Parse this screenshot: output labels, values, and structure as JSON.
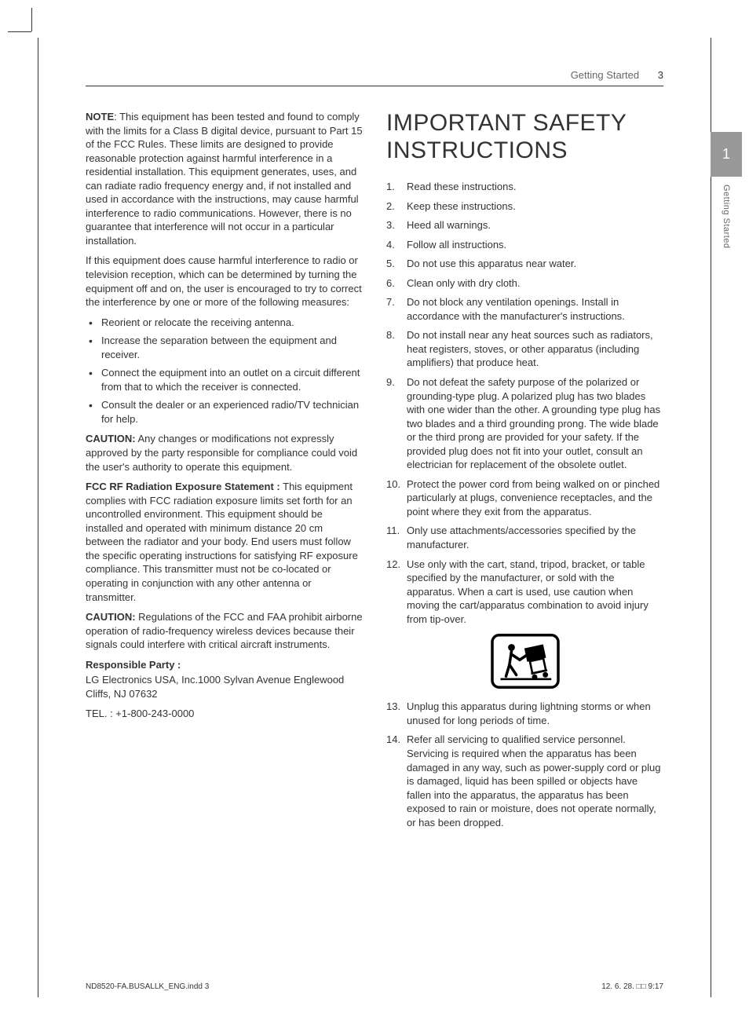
{
  "header": {
    "section": "Getting Started",
    "page_number": "3"
  },
  "side_tab": {
    "number": "1",
    "label": "Getting Started"
  },
  "left_column": {
    "note_label": "NOTE",
    "note_text": ": This equipment has been tested and found to comply with the limits for a Class B digital device, pursuant to Part 15 of the FCC Rules. These limits are designed to provide reasonable protection against harmful interference in a residential installation. This equipment generates, uses, and can radiate radio frequency energy and, if not installed and used in accordance with the instructions, may cause harmful interference to radio communications. However, there is no guarantee that interference will not occur in a particular installation.",
    "para2": "If this equipment does cause harmful interference to radio or television reception, which can be determined by turning the equipment off and on, the user is encouraged to try to correct the interference by one or more of the following measures:",
    "bullets": [
      "Reorient or relocate the receiving antenna.",
      "Increase the separation between the equipment and receiver.",
      "Connect the equipment into an outlet on a circuit different from that to which the receiver is connected.",
      "Consult the dealer or an experienced radio/TV technician for help."
    ],
    "caution1_label": "CAUTION:",
    "caution1_text": " Any changes or modifications not expressly approved by the party responsible for compliance could void the user's authority to operate this equipment.",
    "fcc_label": "FCC RF Radiation Exposure Statement :",
    "fcc_text": " This equipment complies with FCC radiation exposure limits set forth for an uncontrolled environment. This equipment should be installed and operated with  minimum distance 20 cm between the radiator and your body. End users must follow the specific operating instructions for satisfying RF exposure compliance. This transmitter must not be co-located or operating in conjunction with any other antenna or transmitter.",
    "caution2_label": "CAUTION:",
    "caution2_text": " Regulations of the FCC and FAA prohibit airborne operation of radio-frequency wireless devices because their signals could interfere with critical aircraft instruments.",
    "responsible_label": "Responsible Party :",
    "responsible_line1": "LG Electronics USA, Inc.1000 Sylvan Avenue Englewood Cliffs, NJ 07632",
    "responsible_tel": "TEL. : +1-800-243-0000"
  },
  "right_column": {
    "title": "IMPORTANT SAFETY INSTRUCTIONS",
    "items": [
      "Read these instructions.",
      "Keep these instructions.",
      "Heed all warnings.",
      "Follow all instructions.",
      "Do not use this apparatus near water.",
      "Clean only with dry cloth.",
      "Do not block any ventilation openings. Install in accordance with the manufacturer's instructions.",
      "Do not install near any heat sources such as radiators, heat registers, stoves, or other apparatus (including amplifiers) that produce heat.",
      "Do not defeat the safety purpose of the polarized or grounding-type plug. A polarized plug has two blades with one wider than the other. A grounding type plug has two blades and a third grounding prong. The wide blade or the third prong are provided for your safety. If the provided plug does not fit into your outlet, consult an electrician for replacement of the obsolete outlet.",
      "Protect the power cord from being walked on or pinched particularly at plugs, convenience receptacles, and the point where they exit from the apparatus.",
      "Only use attachments/accessories specified by the manufacturer.",
      "Use only with the cart, stand, tripod, bracket, or table specified by the manufacturer, or sold with the apparatus. When a cart is used, use caution when moving the cart/apparatus combination to avoid injury from tip-over.",
      "Unplug this apparatus during lightning storms or when unused for long periods of time.",
      "Refer all servicing to qualified service personnel. Servicing is required when the apparatus has been damaged in any way, such as power-supply cord or plug is damaged, liquid has been spilled or objects have fallen into the apparatus, the apparatus has been exposed to rain or moisture, does not operate normally, or has been dropped."
    ]
  },
  "footer": {
    "filename": "ND8520-FA.BUSALLK_ENG.indd   3",
    "timestamp": "12. 6. 28.   □□ 9:17"
  },
  "colors": {
    "text": "#333333",
    "muted": "#666666",
    "tab_bg": "#999999",
    "tab_fg": "#ffffff"
  }
}
